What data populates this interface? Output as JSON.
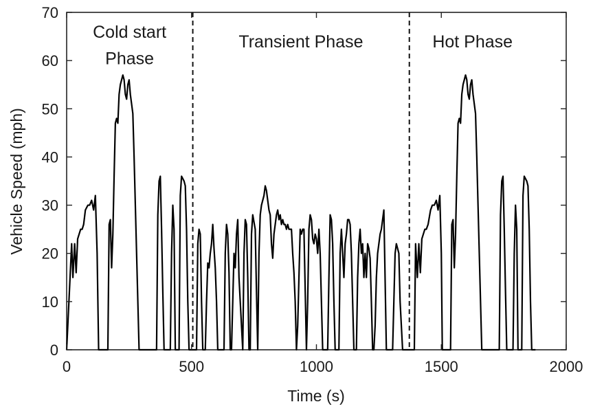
{
  "chart_data": {
    "type": "line",
    "xlabel": "Time (s)",
    "ylabel": "Vehicle Speed (mph)",
    "xlim": [
      0,
      2000
    ],
    "ylim": [
      0,
      70
    ],
    "xticks": [
      0,
      500,
      1000,
      1500,
      2000
    ],
    "yticks": [
      0,
      10,
      20,
      30,
      40,
      50,
      60,
      70
    ],
    "xtick_labels": [
      "0",
      "500",
      "1000",
      "1500",
      "2000"
    ],
    "ytick_labels": [
      "0",
      "10",
      "20",
      "30",
      "40",
      "50",
      "60",
      "70"
    ],
    "grid": false,
    "line_color": "#000000",
    "phase_boundaries": [
      505,
      1372
    ],
    "phase_labels": [
      {
        "lines": [
          "Cold start",
          "Phase"
        ],
        "x": 252
      },
      {
        "lines": [
          "Transient Phase"
        ],
        "x": 938
      },
      {
        "lines": [
          "Hot Phase"
        ],
        "x": 1625
      }
    ],
    "series": [
      {
        "x": [
          0,
          20,
          25,
          32,
          38,
          44,
          50,
          56,
          62,
          68,
          75,
          85,
          92,
          100,
          108,
          115,
          122,
          128,
          132,
          140,
          165,
          170,
          175,
          180,
          185,
          190,
          195,
          200,
          205,
          210,
          215,
          220,
          225,
          230,
          235,
          240,
          245,
          250,
          255,
          260,
          265,
          270,
          275,
          280,
          285,
          290,
          295,
          300,
          305,
          310,
          315,
          320,
          325,
          330,
          335,
          340,
          345,
          360,
          365,
          370,
          375,
          380,
          385,
          390,
          395,
          400,
          415,
          420,
          425,
          430,
          435,
          450,
          455,
          460,
          465,
          470,
          475,
          480,
          485,
          490,
          495,
          500,
          505,
          520,
          525,
          530,
          535,
          540,
          545,
          555,
          560,
          565,
          570,
          575,
          580,
          585,
          590,
          595,
          600,
          605,
          610,
          630,
          635,
          640,
          645,
          650,
          655,
          660,
          665,
          670,
          675,
          680,
          685,
          690,
          705,
          710,
          715,
          720,
          725,
          730,
          735,
          740,
          745,
          755,
          760,
          765,
          770,
          775,
          780,
          785,
          790,
          795,
          800,
          805,
          810,
          815,
          820,
          825,
          830,
          835,
          840,
          845,
          850,
          855,
          860,
          865,
          870,
          875,
          880,
          885,
          890,
          895,
          900,
          905,
          910,
          915,
          920,
          925,
          930,
          935,
          940,
          945,
          950,
          960,
          965,
          970,
          975,
          980,
          985,
          990,
          995,
          1000,
          1005,
          1010,
          1015,
          1020,
          1025,
          1030,
          1045,
          1050,
          1055,
          1060,
          1065,
          1070,
          1075,
          1080,
          1090,
          1095,
          1100,
          1105,
          1110,
          1115,
          1120,
          1125,
          1130,
          1135,
          1140,
          1145,
          1150,
          1160,
          1165,
          1170,
          1175,
          1180,
          1185,
          1190,
          1195,
          1200,
          1205,
          1210,
          1215,
          1220,
          1225,
          1230,
          1235,
          1240,
          1245,
          1250,
          1255,
          1260,
          1265,
          1270,
          1280,
          1285,
          1290,
          1295,
          1300,
          1305,
          1310,
          1315,
          1320,
          1325,
          1330,
          1335,
          1345,
          1350,
          1355,
          1360,
          1365,
          1372,
          1392,
          1397,
          1404,
          1410,
          1416,
          1422,
          1428,
          1434,
          1440,
          1447,
          1457,
          1464,
          1472,
          1480,
          1487,
          1494,
          1500,
          1504,
          1512,
          1537,
          1542,
          1547,
          1552,
          1557,
          1562,
          1567,
          1572,
          1577,
          1582,
          1587,
          1592,
          1597,
          1602,
          1607,
          1612,
          1617,
          1622,
          1627,
          1632,
          1637,
          1642,
          1647,
          1652,
          1657,
          1662,
          1667,
          1672,
          1677,
          1682,
          1687,
          1692,
          1697,
          1702,
          1707,
          1712,
          1717,
          1732,
          1737,
          1742,
          1747,
          1752,
          1757,
          1762,
          1767,
          1772,
          1787,
          1792,
          1797,
          1802,
          1807,
          1822,
          1827,
          1832,
          1837,
          1842,
          1847,
          1852,
          1857,
          1862,
          1867,
          1872,
          1877
        ],
        "y": [
          0,
          22,
          15,
          22,
          16,
          23,
          24,
          25,
          25,
          26,
          29,
          30,
          30,
          31,
          29,
          32,
          20,
          0,
          0,
          0,
          0,
          26,
          27,
          17,
          24,
          36,
          47,
          48,
          47,
          53,
          55,
          56,
          57,
          56,
          53,
          52,
          55,
          56,
          53,
          51,
          49,
          40,
          30,
          20,
          10,
          0,
          0,
          0,
          0,
          0,
          0,
          0,
          0,
          0,
          0,
          0,
          0,
          0,
          28,
          35,
          36,
          25,
          12,
          0,
          0,
          0,
          0,
          20,
          30,
          25,
          0,
          0,
          32,
          36,
          35.5,
          35,
          34,
          25,
          10,
          0,
          0,
          0,
          0,
          0,
          22,
          25,
          24,
          10,
          0,
          0,
          10,
          18,
          17,
          20,
          22,
          26,
          21,
          17,
          10,
          0,
          0,
          0,
          20,
          26,
          24,
          16,
          0,
          0,
          10,
          20,
          17,
          24,
          27,
          15,
          0,
          20,
          27,
          26,
          15,
          0,
          0,
          24,
          28,
          25,
          12,
          0,
          20,
          28,
          30,
          31,
          32,
          34,
          33,
          31,
          29,
          28,
          22,
          19,
          24,
          26,
          28,
          29,
          27,
          28,
          26,
          27,
          26,
          26,
          25,
          26,
          25,
          25,
          25,
          20,
          16,
          10,
          0,
          5,
          15,
          25,
          24,
          25,
          25,
          0,
          10,
          25,
          28,
          27,
          23,
          22,
          24,
          23,
          20,
          25,
          20,
          10,
          0,
          0,
          0,
          15,
          28,
          27,
          22,
          10,
          0,
          0,
          0,
          20,
          25,
          20,
          15,
          22,
          24,
          27,
          27,
          26,
          20,
          10,
          0,
          0,
          15,
          22,
          25,
          20,
          22,
          15,
          20,
          15,
          22,
          21,
          19,
          10,
          0,
          0,
          5,
          15,
          20,
          22,
          24,
          25,
          27,
          29,
          0,
          0,
          0,
          0,
          0,
          0,
          10,
          20,
          22,
          21,
          20,
          10,
          0,
          0,
          0,
          0,
          0,
          0,
          0,
          22,
          15,
          22,
          16,
          23,
          24,
          25,
          25,
          26,
          29,
          30,
          30,
          31,
          29,
          32,
          20,
          0,
          0,
          0,
          26,
          27,
          17,
          24,
          36,
          47,
          48,
          47,
          53,
          55,
          56,
          57,
          56,
          53,
          52,
          55,
          56,
          53,
          51,
          49,
          40,
          30,
          20,
          10,
          0,
          0,
          0,
          0,
          0,
          0,
          0,
          0,
          0,
          0,
          0,
          0,
          0,
          28,
          35,
          36,
          25,
          12,
          0,
          0,
          0,
          0,
          20,
          30,
          25,
          0,
          0,
          32,
          36,
          35.5,
          35,
          34,
          25,
          10,
          0,
          0,
          0,
          0
        ]
      }
    ]
  }
}
